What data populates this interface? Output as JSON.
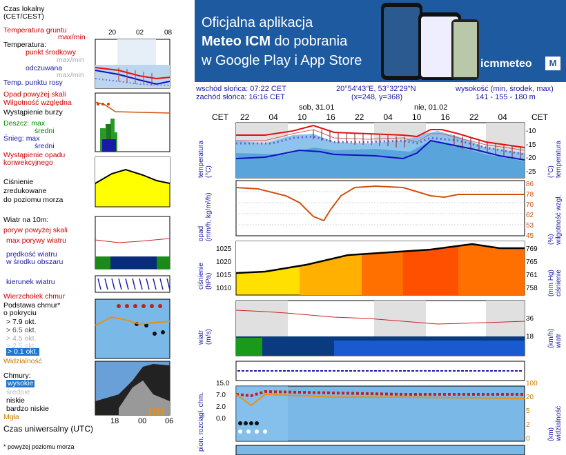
{
  "legend": {
    "local_time": "Czas lokalny\n(CET/CEST)",
    "soil_temp_label": "Temperatura gruntu",
    "soil_temp_unit": "max/min",
    "temperature_label": "Temperatura:",
    "temp_mid": "punkt środkowy",
    "temp_range": "max/min",
    "feels_like": "odczuwana",
    "feels_range": "max/min",
    "dew_point": "Temp. punktu rosy",
    "precip_above": "Opad powyżej skali",
    "humidity": "Wilgotność względna",
    "storm": "Wystąpienie burzy",
    "rain_max": "Deszcz: max",
    "rain_mid": "średni",
    "snow_max": "Śnieg: max",
    "snow_mid": "średni",
    "conv_precip": "Wystąpienie opadu\nkonwekcyjnego",
    "pressure": "Ciśnienie\nzredukowane\ndo poziomu morza",
    "wind_at": "Wiatr na 10m:",
    "gusts_above": "poryw powyżej skali",
    "max_gust": "max porywy wiatru",
    "wind_speed": "prędkość wiatru\nw środku obszaru",
    "wind_dir": "kierunek wiatru",
    "cloud_top": "Wierzchołek chmur",
    "cloud_base": "Podstawa chmur*\no pokryciu",
    "okt79": "> 7.9 okt.",
    "okt65": "> 6.5 okt.",
    "okt45": "> 4.5 okt.",
    "okt25": "> 2.5 okt.",
    "okt01": "> 0.1 okt.",
    "visibility": "Widzialność",
    "clouds": "Chmury:",
    "high": "wysokie",
    "mid": "średnie",
    "low": "niskie",
    "very_low": "bardzo niskie",
    "fog": "Mgła",
    "utc": "Czas uniwersalny (UTC)",
    "footnote": "* powyżej poziomu morza",
    "ticks_top": [
      "20",
      "02",
      "08"
    ],
    "ticks_bottom": [
      "18",
      "00",
      "06"
    ]
  },
  "banner": {
    "line1": "Oficjalna aplikacja",
    "line2_bold": "Meteo ICM",
    "line2_rest": " do pobrania",
    "line3": "w Google Play i App Store",
    "logo_text": "icmmeteo",
    "logo_m": "M"
  },
  "header": {
    "sunrise": "wschód słońca: 07:22 CET",
    "sunset": "zachód słońca: 16:16 CET",
    "coords": "20°54'43\"E, 53°32'29\"N",
    "grid": "(x=248, y=368)",
    "altitude_label": "wysokość (min, środek, max)",
    "altitude": "141 - 155 - 180 m",
    "cet": "CET",
    "day1": "sob, 31.01",
    "day2": "nie, 01.02",
    "hours": [
      "22",
      "04",
      "10",
      "16",
      "22",
      "04",
      "10",
      "16",
      "22",
      "04"
    ]
  },
  "panels": {
    "temperature": {
      "left": "temperatura\n(°C)",
      "right": "(°C)\ntemperatura",
      "ticks": [
        "-10",
        "-15",
        "-20",
        "-25"
      ]
    },
    "precip": {
      "left": "opad\n(mm/h, kg/m²/h)",
      "right": "(%)\nwilgotność wzgl.",
      "ticks": [
        "86",
        "78",
        "70",
        "62",
        "53",
        "45"
      ]
    },
    "pressure": {
      "left": "ciśnienie\n(hPa)",
      "right": "(mm Hg)\nciśnienie",
      "ticks_l": [
        "1025",
        "1020",
        "1015",
        "1010"
      ],
      "ticks_r": [
        "769",
        "765",
        "761",
        "758"
      ]
    },
    "wind": {
      "left": "wiatr\n(m/s)",
      "right": "(km/h)\nwiatr",
      "ticks": [
        "36",
        "18"
      ]
    },
    "clouds": {
      "left": "pion. rozciągł. chm.",
      "right": "(km)\nwidzialność",
      "ticks_l": [
        "15.0",
        "7.0",
        "2.0",
        "0.0"
      ],
      "ticks_r": [
        "100",
        "20",
        "5",
        "2",
        "0"
      ]
    }
  },
  "colors": {
    "banner": "#1e5aa0",
    "temp_red": "#e01010",
    "temp_blue": "#1010c0",
    "humidity": "#d05010"
  }
}
